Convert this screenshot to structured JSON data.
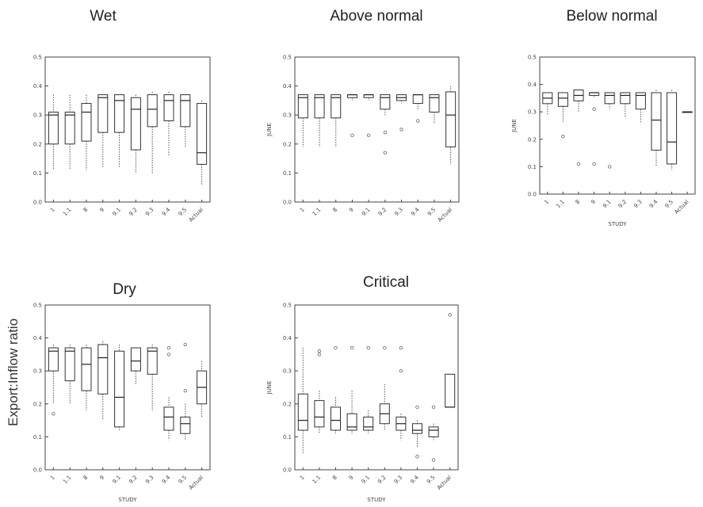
{
  "figure": {
    "ylabel": "Export:Inflow ratio"
  },
  "chart_data": [
    {
      "type": "box",
      "title": "Wet",
      "ylabel": "",
      "xlabel": "",
      "ylim": [
        0,
        0.5
      ],
      "yticks": [
        "0.0",
        "0.1",
        "0.2",
        "0.3",
        "0.4",
        "0.5"
      ],
      "categories": [
        "1",
        "1.1",
        "8",
        "9",
        "9.1",
        "9.2",
        "9.3",
        "9.4",
        "9.5",
        "Actual"
      ],
      "boxes": [
        {
          "min": 0.11,
          "q1": 0.2,
          "median": 0.3,
          "q3": 0.31,
          "max": 0.37
        },
        {
          "min": 0.11,
          "q1": 0.2,
          "median": 0.3,
          "q3": 0.31,
          "max": 0.37
        },
        {
          "min": 0.11,
          "q1": 0.21,
          "median": 0.31,
          "q3": 0.34,
          "max": 0.37
        },
        {
          "min": 0.12,
          "q1": 0.24,
          "median": 0.36,
          "q3": 0.37,
          "max": 0.37
        },
        {
          "min": 0.12,
          "q1": 0.24,
          "median": 0.35,
          "q3": 0.37,
          "max": 0.37
        },
        {
          "min": 0.1,
          "q1": 0.18,
          "median": 0.32,
          "q3": 0.36,
          "max": 0.37
        },
        {
          "min": 0.1,
          "q1": 0.26,
          "median": 0.32,
          "q3": 0.37,
          "max": 0.38
        },
        {
          "min": 0.16,
          "q1": 0.28,
          "median": 0.35,
          "q3": 0.37,
          "max": 0.38
        },
        {
          "min": 0.19,
          "q1": 0.26,
          "median": 0.35,
          "q3": 0.37,
          "max": 0.37
        },
        {
          "min": 0.06,
          "q1": 0.13,
          "median": 0.17,
          "q3": 0.34,
          "max": 0.35
        }
      ],
      "outliers": []
    },
    {
      "type": "box",
      "title": "Above normal",
      "ylabel": "JUNE",
      "xlabel": "",
      "ylim": [
        0,
        0.5
      ],
      "yticks": [
        "0.0",
        "0.1",
        "0.2",
        "0.3",
        "0.4",
        "0.5"
      ],
      "categories": [
        "1",
        "1.1",
        "8",
        "9",
        "9.1",
        "9.2",
        "9.3",
        "9.4",
        "9.5",
        "Actual"
      ],
      "boxes": [
        {
          "min": 0.19,
          "q1": 0.29,
          "median": 0.36,
          "q3": 0.37,
          "max": 0.37
        },
        {
          "min": 0.19,
          "q1": 0.29,
          "median": 0.36,
          "q3": 0.37,
          "max": 0.37
        },
        {
          "min": 0.19,
          "q1": 0.29,
          "median": 0.36,
          "q3": 0.37,
          "max": 0.37
        },
        {
          "min": 0.35,
          "q1": 0.36,
          "median": 0.37,
          "q3": 0.37,
          "max": 0.37
        },
        {
          "min": 0.35,
          "q1": 0.36,
          "median": 0.37,
          "q3": 0.37,
          "max": 0.37
        },
        {
          "min": 0.3,
          "q1": 0.32,
          "median": 0.36,
          "q3": 0.37,
          "max": 0.37
        },
        {
          "min": 0.34,
          "q1": 0.35,
          "median": 0.36,
          "q3": 0.37,
          "max": 0.37
        },
        {
          "min": 0.32,
          "q1": 0.34,
          "median": 0.37,
          "q3": 0.37,
          "max": 0.37
        },
        {
          "min": 0.27,
          "q1": 0.31,
          "median": 0.36,
          "q3": 0.37,
          "max": 0.37
        },
        {
          "min": 0.13,
          "q1": 0.19,
          "median": 0.3,
          "q3": 0.38,
          "max": 0.4
        }
      ],
      "outliers": [
        {
          "cat": 3,
          "y": 0.23
        },
        {
          "cat": 4,
          "y": 0.23
        },
        {
          "cat": 5,
          "y": 0.24
        },
        {
          "cat": 5,
          "y": 0.17
        },
        {
          "cat": 6,
          "y": 0.25
        },
        {
          "cat": 7,
          "y": 0.28
        }
      ]
    },
    {
      "type": "box",
      "title": "Below normal",
      "ylabel": "JUNE",
      "xlabel": "STUDY",
      "ylim": [
        0,
        0.5
      ],
      "yticks": [
        "0.0",
        "0.1",
        "0.2",
        "0.3",
        "0.4",
        "0.5"
      ],
      "categories": [
        "1",
        "1.1",
        "8",
        "9",
        "9.1",
        "9.2",
        "9.3",
        "9.4",
        "9.5",
        "Actual"
      ],
      "boxes": [
        {
          "min": 0.29,
          "q1": 0.33,
          "median": 0.35,
          "q3": 0.37,
          "max": 0.37
        },
        {
          "min": 0.26,
          "q1": 0.32,
          "median": 0.35,
          "q3": 0.37,
          "max": 0.37
        },
        {
          "min": 0.3,
          "q1": 0.34,
          "median": 0.36,
          "q3": 0.38,
          "max": 0.38
        },
        {
          "min": 0.35,
          "q1": 0.36,
          "median": 0.37,
          "q3": 0.37,
          "max": 0.37
        },
        {
          "min": 0.31,
          "q1": 0.33,
          "median": 0.36,
          "q3": 0.37,
          "max": 0.37
        },
        {
          "min": 0.28,
          "q1": 0.33,
          "median": 0.36,
          "q3": 0.37,
          "max": 0.37
        },
        {
          "min": 0.26,
          "q1": 0.31,
          "median": 0.36,
          "q3": 0.37,
          "max": 0.37
        },
        {
          "min": 0.1,
          "q1": 0.16,
          "median": 0.27,
          "q3": 0.37,
          "max": 0.38
        },
        {
          "min": 0.09,
          "q1": 0.11,
          "median": 0.19,
          "q3": 0.37,
          "max": 0.38
        },
        {
          "min": 0.3,
          "q1": 0.3,
          "median": 0.3,
          "q3": 0.3,
          "max": 0.3
        }
      ],
      "outliers": [
        {
          "cat": 1,
          "y": 0.21
        },
        {
          "cat": 2,
          "y": 0.11
        },
        {
          "cat": 3,
          "y": 0.31
        },
        {
          "cat": 3,
          "y": 0.11
        },
        {
          "cat": 4,
          "y": 0.1
        }
      ]
    },
    {
      "type": "box",
      "title": "Dry",
      "ylabel": "",
      "xlabel": "STUDY",
      "ylim": [
        0,
        0.5
      ],
      "yticks": [
        "0.0",
        "0.1",
        "0.2",
        "0.3",
        "0.4",
        "0.5"
      ],
      "categories": [
        "1",
        "1.1",
        "8",
        "9",
        "9.1",
        "9.2",
        "9.3",
        "9.4",
        "9.5",
        "Actual"
      ],
      "boxes": [
        {
          "min": 0.2,
          "q1": 0.3,
          "median": 0.36,
          "q3": 0.37,
          "max": 0.38
        },
        {
          "min": 0.2,
          "q1": 0.27,
          "median": 0.36,
          "q3": 0.37,
          "max": 0.38
        },
        {
          "min": 0.18,
          "q1": 0.24,
          "median": 0.32,
          "q3": 0.37,
          "max": 0.38
        },
        {
          "min": 0.15,
          "q1": 0.23,
          "median": 0.34,
          "q3": 0.38,
          "max": 0.39
        },
        {
          "min": 0.12,
          "q1": 0.13,
          "median": 0.22,
          "q3": 0.36,
          "max": 0.38
        },
        {
          "min": 0.26,
          "q1": 0.3,
          "median": 0.33,
          "q3": 0.37,
          "max": 0.37
        },
        {
          "min": 0.18,
          "q1": 0.29,
          "median": 0.36,
          "q3": 0.37,
          "max": 0.38
        },
        {
          "min": 0.09,
          "q1": 0.12,
          "median": 0.16,
          "q3": 0.19,
          "max": 0.22
        },
        {
          "min": 0.09,
          "q1": 0.11,
          "median": 0.14,
          "q3": 0.16,
          "max": 0.2
        },
        {
          "min": 0.16,
          "q1": 0.2,
          "median": 0.25,
          "q3": 0.3,
          "max": 0.33
        }
      ],
      "outliers": [
        {
          "cat": 0,
          "y": 0.17
        },
        {
          "cat": 7,
          "y": 0.37
        },
        {
          "cat": 7,
          "y": 0.35
        },
        {
          "cat": 8,
          "y": 0.38
        },
        {
          "cat": 8,
          "y": 0.24
        }
      ]
    },
    {
      "type": "box",
      "title": "Critical",
      "ylabel": "JUNE",
      "xlabel": "STUDY",
      "ylim": [
        0,
        0.5
      ],
      "yticks": [
        "0.0",
        "0.1",
        "0.2",
        "0.3",
        "0.4",
        "0.5"
      ],
      "categories": [
        "1",
        "1.1",
        "8",
        "9",
        "9.1",
        "9.2",
        "9.3",
        "9.4",
        "9.5",
        "Actual"
      ],
      "boxes": [
        {
          "min": 0.05,
          "q1": 0.12,
          "median": 0.15,
          "q3": 0.23,
          "max": 0.37
        },
        {
          "min": 0.11,
          "q1": 0.13,
          "median": 0.16,
          "q3": 0.21,
          "max": 0.24
        },
        {
          "min": 0.11,
          "q1": 0.12,
          "median": 0.15,
          "q3": 0.19,
          "max": 0.22
        },
        {
          "min": 0.11,
          "q1": 0.12,
          "median": 0.13,
          "q3": 0.17,
          "max": 0.24
        },
        {
          "min": 0.11,
          "q1": 0.12,
          "median": 0.13,
          "q3": 0.16,
          "max": 0.18
        },
        {
          "min": 0.12,
          "q1": 0.14,
          "median": 0.17,
          "q3": 0.2,
          "max": 0.26
        },
        {
          "min": 0.09,
          "q1": 0.12,
          "median": 0.14,
          "q3": 0.16,
          "max": 0.17
        },
        {
          "min": 0.07,
          "q1": 0.11,
          "median": 0.12,
          "q3": 0.14,
          "max": 0.15
        },
        {
          "min": 0.09,
          "q1": 0.1,
          "median": 0.12,
          "q3": 0.13,
          "max": 0.14
        },
        {
          "min": 0.19,
          "q1": 0.19,
          "median": 0.19,
          "q3": 0.29,
          "max": 0.29
        }
      ],
      "outliers": [
        {
          "cat": 1,
          "y": 0.36
        },
        {
          "cat": 1,
          "y": 0.35
        },
        {
          "cat": 2,
          "y": 0.37
        },
        {
          "cat": 3,
          "y": 0.37
        },
        {
          "cat": 4,
          "y": 0.37
        },
        {
          "cat": 5,
          "y": 0.37
        },
        {
          "cat": 6,
          "y": 0.37
        },
        {
          "cat": 6,
          "y": 0.3
        },
        {
          "cat": 7,
          "y": 0.19
        },
        {
          "cat": 7,
          "y": 0.04
        },
        {
          "cat": 8,
          "y": 0.19
        },
        {
          "cat": 8,
          "y": 0.03
        },
        {
          "cat": 9,
          "y": 0.47
        }
      ]
    }
  ]
}
